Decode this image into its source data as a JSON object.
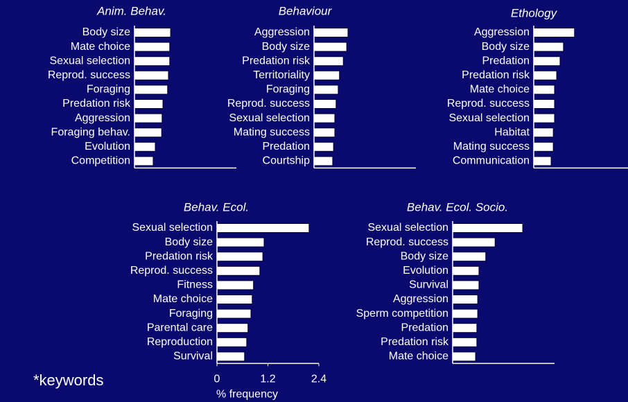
{
  "annotation": "*keywords",
  "chart_data": [
    {
      "type": "bar",
      "orientation": "horizontal",
      "title": "Anim. Behav.",
      "categories": [
        "Body size",
        "Mate choice",
        "Sexual selection",
        "Reprod. success",
        "Foraging",
        "Predation risk",
        "Aggression",
        "Foraging behav.",
        "Evolution",
        "Competition"
      ],
      "values": [
        0.85,
        0.83,
        0.83,
        0.8,
        0.78,
        0.67,
        0.65,
        0.64,
        0.49,
        0.44
      ],
      "color": "#ffffff",
      "xlim": [
        0,
        2.4
      ]
    },
    {
      "type": "bar",
      "orientation": "horizontal",
      "title": "Behaviour",
      "categories": [
        "Aggression",
        "Body size",
        "Predation risk",
        "Territoriality",
        "Foraging",
        "Reprod. success",
        "Sexual selection",
        "Mating success",
        "Predation",
        "Courtship"
      ],
      "values": [
        0.8,
        0.77,
        0.69,
        0.6,
        0.57,
        0.52,
        0.49,
        0.49,
        0.46,
        0.44
      ],
      "color": "#ffffff",
      "xlim": [
        0,
        2.4
      ]
    },
    {
      "type": "bar",
      "orientation": "horizontal",
      "title": "Ethology",
      "categories": [
        "Aggression",
        "Body size",
        "Predation",
        "Predation risk",
        "Mate choice",
        "Reprod. success",
        "Sexual selection",
        "Habitat",
        "Mating success",
        "Communication"
      ],
      "values": [
        0.96,
        0.7,
        0.62,
        0.54,
        0.49,
        0.49,
        0.49,
        0.46,
        0.46,
        0.41
      ],
      "color": "#ffffff",
      "xlim": [
        0,
        2.4
      ]
    },
    {
      "type": "bar",
      "orientation": "horizontal",
      "title": "Behav. Ecol.",
      "categories": [
        "Sexual selection",
        "Body size",
        "Predation risk",
        "Reprod. success",
        "Fitness",
        "Mate choice",
        "Foraging",
        "Parental care",
        "Reproduction",
        "Survival"
      ],
      "values": [
        2.17,
        1.11,
        1.08,
        1.01,
        0.86,
        0.83,
        0.8,
        0.73,
        0.7,
        0.65
      ],
      "color": "#ffffff",
      "xlim": [
        0,
        2.4
      ],
      "xticks": [
        0,
        1.2,
        2.4
      ],
      "xlabel": "% frequency"
    },
    {
      "type": "bar",
      "orientation": "horizontal",
      "title": "Behav. Ecol. Socio.",
      "categories": [
        "Sexual selection",
        "Reprod. success",
        "Body size",
        "Evolution",
        "Survival",
        "Aggression",
        "Sperm competition",
        "Predation",
        "Predation risk",
        "Mate choice"
      ],
      "values": [
        1.65,
        1.0,
        0.78,
        0.62,
        0.62,
        0.59,
        0.59,
        0.57,
        0.57,
        0.54
      ],
      "color": "#ffffff",
      "xlim": [
        0,
        2.4
      ]
    }
  ]
}
